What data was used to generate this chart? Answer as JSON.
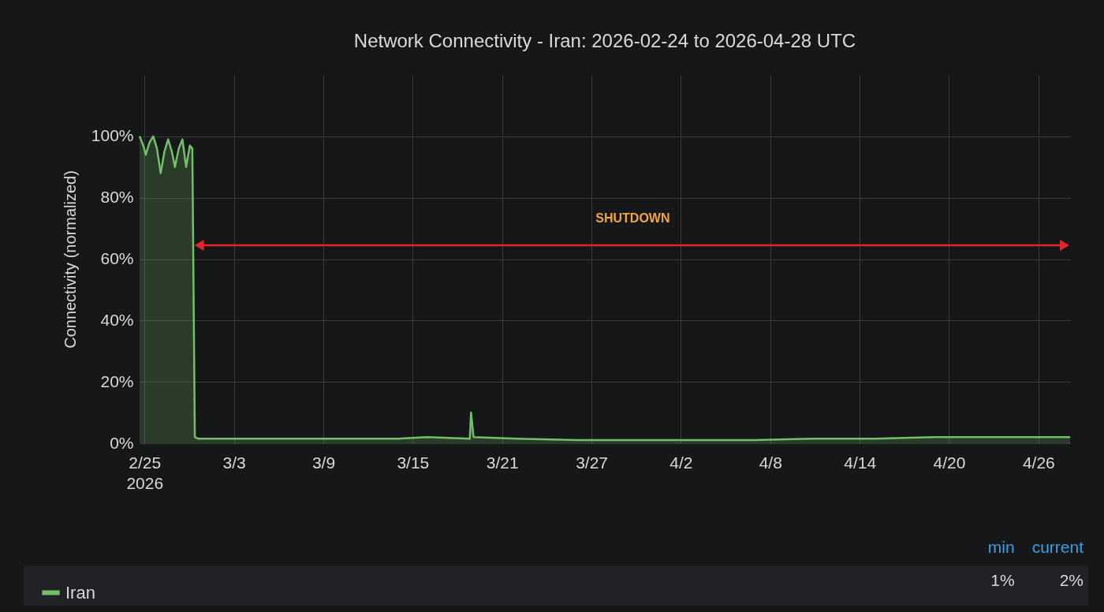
{
  "chart_data": {
    "type": "area",
    "title": "Network Connectivity - Iran: 2026-02-24 to 2026-04-28 UTC",
    "ylabel": "Connectivity (normalized)",
    "x": [
      "2026-02-24T16:00",
      "2026-02-24T22:00",
      "2026-02-25T02:00",
      "2026-02-25T08:00",
      "2026-02-25T14:00",
      "2026-02-25T20:00",
      "2026-02-26T02:00",
      "2026-02-26T08:00",
      "2026-02-26T14:00",
      "2026-02-26T20:00",
      "2026-02-27T01:00",
      "2026-02-27T07:00",
      "2026-02-27T13:00",
      "2026-02-27T19:00",
      "2026-02-28T01:00",
      "2026-02-28T05:00",
      "2026-02-28T09:00",
      "2026-02-28T14:00",
      "2026-03-02",
      "2026-03-05",
      "2026-03-08",
      "2026-03-11",
      "2026-03-14",
      "2026-03-16",
      "2026-03-18T20:00",
      "2026-03-18T22:00",
      "2026-03-19T02:00",
      "2026-03-22",
      "2026-03-26",
      "2026-03-30",
      "2026-04-03",
      "2026-04-07",
      "2026-04-11",
      "2026-04-15",
      "2026-04-19",
      "2026-04-23",
      "2026-04-28T03:00"
    ],
    "series": [
      {
        "name": "Iran",
        "color": "#73bf69",
        "values": [
          100,
          97,
          94,
          98,
          100,
          96,
          88,
          95,
          99,
          95,
          90,
          96,
          99,
          90,
          97,
          96,
          2,
          1.5,
          1.5,
          1.5,
          1.5,
          1.5,
          1.5,
          2,
          1.5,
          10,
          2,
          1.5,
          1,
          1,
          1,
          1,
          1.5,
          1.5,
          2,
          2,
          2
        ]
      }
    ],
    "xlim": [
      "2026-02-24T16:00",
      "2026-04-28T03:00"
    ],
    "xticks": [
      {
        "value": "2026-02-25",
        "label": "2/25\n2026"
      },
      {
        "value": "2026-03-03",
        "label": "3/3"
      },
      {
        "value": "2026-03-09",
        "label": "3/9"
      },
      {
        "value": "2026-03-15",
        "label": "3/15"
      },
      {
        "value": "2026-03-21",
        "label": "3/21"
      },
      {
        "value": "2026-03-27",
        "label": "3/27"
      },
      {
        "value": "2026-04-02",
        "label": "4/2"
      },
      {
        "value": "2026-04-08",
        "label": "4/8"
      },
      {
        "value": "2026-04-14",
        "label": "4/14"
      },
      {
        "value": "2026-04-20",
        "label": "4/20"
      },
      {
        "value": "2026-04-26",
        "label": "4/26"
      }
    ],
    "ylim": [
      0,
      120
    ],
    "yticks": [
      {
        "value": 0,
        "label": "0%"
      },
      {
        "value": 20,
        "label": "20%"
      },
      {
        "value": 40,
        "label": "40%"
      },
      {
        "value": 60,
        "label": "60%"
      },
      {
        "value": 80,
        "label": "80%"
      },
      {
        "value": 100,
        "label": "100%"
      }
    ],
    "grid": true,
    "legend": "bottom left",
    "annotations": [
      "SHUTDOWN",
      "min",
      "current",
      "1%",
      "2%"
    ]
  }
}
